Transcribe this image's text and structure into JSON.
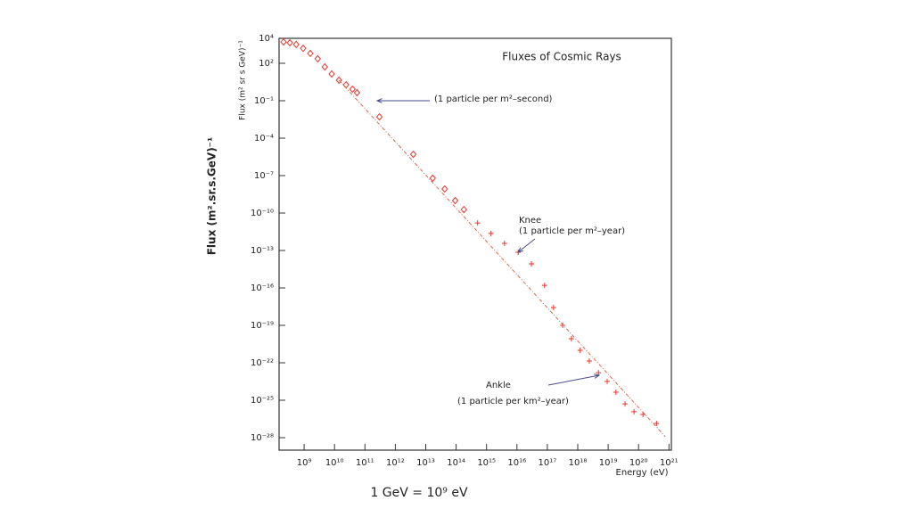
{
  "chart_data": {
    "type": "scatter",
    "title": "Fluxes of Cosmic Rays",
    "xlabel": "Energy (eV)",
    "ylabel": "Flux (m² sr s GeV)⁻¹",
    "slide_ylabel": "Flux (m².sr.s.GeV)⁻¹",
    "footnote": "1 GeV = 10⁹ eV",
    "xscale": "log",
    "yscale": "log",
    "xlim": [
      150000000.0,
      1.2e+21
    ],
    "ylim": [
      1e-29,
      10000.0
    ],
    "xticks": [
      {
        "value": 1000000000.0,
        "label": "10⁹"
      },
      {
        "value": 10000000000.0,
        "label": "10¹⁰"
      },
      {
        "value": 100000000000.0,
        "label": "10¹¹"
      },
      {
        "value": 1000000000000.0,
        "label": "10¹²"
      },
      {
        "value": 10000000000000.0,
        "label": "10¹³"
      },
      {
        "value": 100000000000000.0,
        "label": "10¹⁴"
      },
      {
        "value": 1000000000000000.0,
        "label": "10¹⁵"
      },
      {
        "value": 1e+16,
        "label": "10¹⁶"
      },
      {
        "value": 1e+17,
        "label": "10¹⁷"
      },
      {
        "value": 1e+18,
        "label": "10¹⁸"
      },
      {
        "value": 1e+19,
        "label": "10¹⁹"
      },
      {
        "value": 1e+20,
        "label": "10²⁰"
      },
      {
        "value": 1e+21,
        "label": "10²¹"
      }
    ],
    "yticks": [
      {
        "value": 10000.0,
        "label": "10⁴"
      },
      {
        "value": 100.0,
        "label": "10²"
      },
      {
        "value": 0.1,
        "label": "10⁻¹"
      },
      {
        "value": 0.0001,
        "label": "10⁻⁴"
      },
      {
        "value": 1e-07,
        "label": "10⁻⁷"
      },
      {
        "value": 1e-10,
        "label": "10⁻¹⁰"
      },
      {
        "value": 1e-13,
        "label": "10⁻¹³"
      },
      {
        "value": 1e-16,
        "label": "10⁻¹⁶"
      },
      {
        "value": 1e-19,
        "label": "10⁻¹⁹"
      },
      {
        "value": 1e-22,
        "label": "10⁻²²"
      },
      {
        "value": 1e-25,
        "label": "10⁻²⁵"
      },
      {
        "value": 1e-28,
        "label": "10⁻²⁸"
      }
    ],
    "annotations": [
      "(1 particle per m²–second)",
      "Knee",
      "(1 particle per m²–year)",
      "Ankle",
      "(1 particle per km²–year)"
    ],
    "series": [
      {
        "marker": "diamond",
        "color": "#e8352b",
        "x": [
          210000000.0,
          340000000.0,
          550000000.0,
          930000000.0,
          1600000000.0,
          2800000000.0,
          4800000000.0,
          8100000000.0,
          14000000000.0,
          24000000000.0,
          39000000000.0,
          55000000000.0,
          300000000000.0,
          3900000000000.0,
          17000000000000.0,
          42000000000000.0,
          93000000000000.0,
          180000000000000.0
        ],
        "values": [
          5100.0,
          4400.0,
          3200.0,
          1600.0,
          620.0,
          230.0,
          51,
          14,
          4.4,
          1.9,
          0.85,
          0.44,
          0.0051,
          5.1e-06,
          6.2e-08,
          8.5e-09,
          1e-09,
          1.9e-10
        ]
      },
      {
        "marker": "cross",
        "color": "#e8352b",
        "x": [
          510000000000000.0,
          1400000000000000.0,
          3900000000000000.0,
          1.1e+16,
          3e+16,
          8.1e+16,
          1.6e+17,
          3.2e+17,
          6.2e+17,
          1.2e+18,
          2.4e+18,
          4.8e+18,
          9.3e+18,
          1.8e+19,
          3.6e+19,
          7.1e+19,
          1.4e+20,
          3.9e+20
        ],
        "values": [
          1.6e-11,
          2.3e-12,
          3.7e-13,
          7.2e-14,
          8.5e-15,
          1.6e-16,
          2.7e-18,
          1e-19,
          8.5e-21,
          1e-21,
          1.4e-22,
          1.6e-23,
          3.2e-24,
          4.4e-25,
          5.1e-26,
          1.2e-26,
          7.2e-27,
          1.4e-27
        ]
      },
      {
        "marker": "none",
        "line": "dashdot",
        "color": "#d86a50",
        "x": [
          14000000000.0,
          7.6e+20
        ],
        "values": [
          4.4,
          1.2e-28
        ]
      }
    ]
  }
}
